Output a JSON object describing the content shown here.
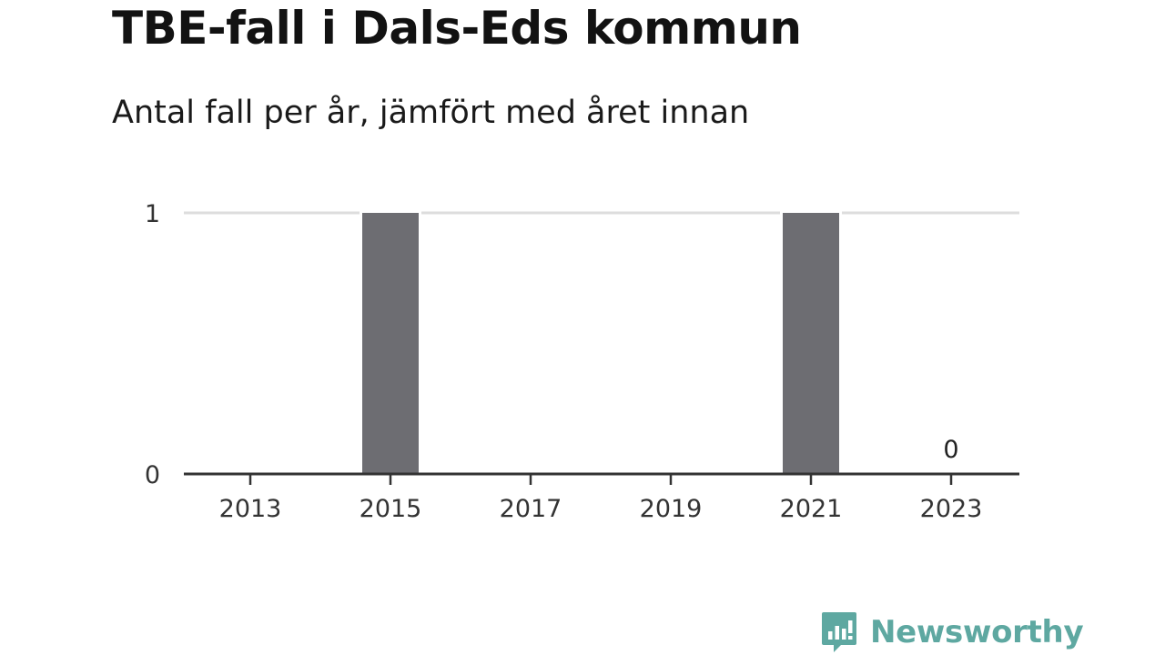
{
  "chart_data": {
    "type": "bar",
    "title": "TBE-fall i Dals-Eds kommun",
    "subtitle": "Antal fall per år, jämfört med året innan",
    "x": [
      2013,
      2014,
      2015,
      2016,
      2017,
      2018,
      2019,
      2020,
      2021,
      2022,
      2023
    ],
    "values": [
      0,
      0,
      1,
      0,
      0,
      0,
      0,
      0,
      1,
      0,
      0
    ],
    "x_tick_labels": [
      "2013",
      "2015",
      "2017",
      "2019",
      "2021",
      "2023"
    ],
    "y_tick_labels": [
      "0",
      "1"
    ],
    "ylim": [
      0,
      1
    ],
    "grid": true,
    "bar_color": "#6d6d72",
    "grid_color": "#dddddd",
    "axis_color": "#333333",
    "data_labels": [
      {
        "x": 2023,
        "text": "0"
      }
    ]
  },
  "brand": {
    "name": "Newsworthy",
    "icon": "newsworthy-logo-icon",
    "color": "#5ea8a1"
  }
}
